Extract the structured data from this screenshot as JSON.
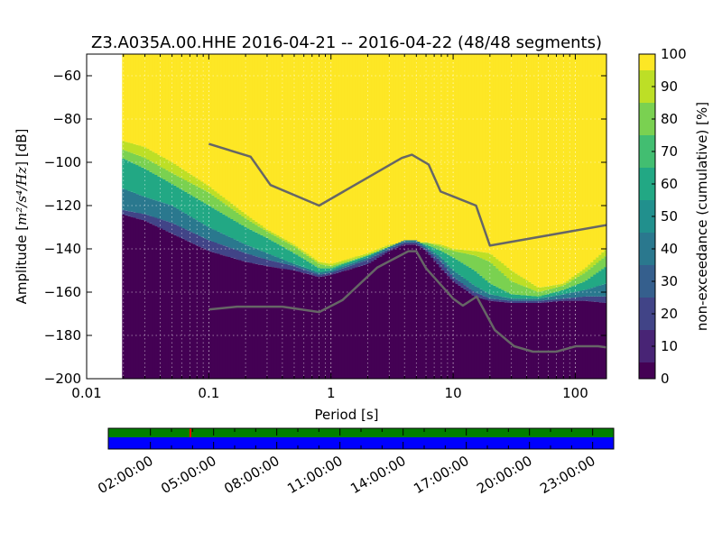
{
  "chart_data": {
    "type": "heatmap",
    "title": "Z3.A035A.00.HHE   2016-04-21 -- 2016-04-22  (48/48 segments)",
    "xlabel": "Period [s]",
    "ylabel_prefix": "Amplitude [",
    "ylabel_math": "m²/s⁴/Hz",
    "ylabel_suffix": "] [dB]",
    "x_scale": "log",
    "xlim": [
      0.01,
      180
    ],
    "ylim": [
      -200,
      -50
    ],
    "x_ticks": [
      {
        "value": 0.01,
        "label": "0.01"
      },
      {
        "value": 0.1,
        "label": "0.1"
      },
      {
        "value": 1,
        "label": "1"
      },
      {
        "value": 10,
        "label": "10"
      },
      {
        "value": 100,
        "label": "100"
      }
    ],
    "y_ticks": [
      {
        "value": -60,
        "label": "−60"
      },
      {
        "value": -80,
        "label": "−80"
      },
      {
        "value": -100,
        "label": "−100"
      },
      {
        "value": -120,
        "label": "−120"
      },
      {
        "value": -140,
        "label": "−140"
      },
      {
        "value": -160,
        "label": "−160"
      },
      {
        "value": -180,
        "label": "−180"
      },
      {
        "value": -200,
        "label": "−200"
      }
    ],
    "grid": true,
    "colorbar": {
      "label": "non-exceedance (cumulative) [%]",
      "range": [
        0,
        100
      ],
      "ticks": [
        {
          "value": 0,
          "label": "0"
        },
        {
          "value": 10,
          "label": "10"
        },
        {
          "value": 20,
          "label": "20"
        },
        {
          "value": 30,
          "label": "30"
        },
        {
          "value": 40,
          "label": "40"
        },
        {
          "value": 50,
          "label": "50"
        },
        {
          "value": 60,
          "label": "60"
        },
        {
          "value": 70,
          "label": "70"
        },
        {
          "value": 80,
          "label": "80"
        },
        {
          "value": 90,
          "label": "90"
        },
        {
          "value": 100,
          "label": "100"
        }
      ],
      "colors": [
        "#440154",
        "#482475",
        "#414487",
        "#355f8d",
        "#2a788e",
        "#21908d",
        "#22a884",
        "#42be71",
        "#7ad151",
        "#bddf26",
        "#fde725"
      ]
    },
    "data_start_period": 0.0195,
    "noise_models": {
      "color": "#666666",
      "high": {
        "x": [
          0.1,
          0.22,
          0.32,
          0.8,
          3.8,
          4.6,
          6.3,
          7.9,
          15.4,
          20,
          180
        ],
        "y": [
          -91.5,
          -97.4,
          -110.5,
          -120,
          -98,
          -96.5,
          -101,
          -113.5,
          -120,
          -138.5,
          -129
        ]
      },
      "low": {
        "x": [
          0.1,
          0.17,
          0.4,
          0.8,
          1.24,
          2.4,
          4.3,
          5,
          6,
          10,
          12,
          15.6,
          21.9,
          31.6,
          45,
          70,
          101,
          154,
          180
        ],
        "y": [
          -168,
          -166.7,
          -166.7,
          -169.2,
          -163.7,
          -148.6,
          -141.1,
          -141.1,
          -149,
          -163,
          -166.2,
          -162.1,
          -177.5,
          -185,
          -187.5,
          -187.5,
          -185,
          -185,
          -185.5
        ]
      }
    },
    "percentile_curves": {
      "x": [
        0.0195,
        0.03,
        0.05,
        0.1,
        0.2,
        0.3,
        0.5,
        0.8,
        1.0,
        2.0,
        3.0,
        4.0,
        5.0,
        6.0,
        8.0,
        10,
        15,
        20,
        30,
        50,
        80,
        120,
        180
      ],
      "p5": [
        -124,
        -127,
        -133,
        -141,
        -146,
        -148,
        -150,
        -153,
        -152,
        -147,
        -141,
        -138,
        -138,
        -141,
        -149,
        -155,
        -162,
        -164,
        -165,
        -165,
        -164,
        -164,
        -165
      ],
      "p20": [
        -122,
        -124,
        -128,
        -136,
        -142,
        -145,
        -148,
        -152,
        -151,
        -145,
        -140,
        -137,
        -137,
        -140,
        -146,
        -153,
        -160,
        -163,
        -164,
        -164,
        -163,
        -162,
        -162
      ],
      "p50": [
        -112,
        -116,
        -120,
        -130,
        -138,
        -142,
        -147,
        -151,
        -150,
        -144,
        -139,
        -136,
        -136,
        -139,
        -144,
        -150,
        -157,
        -161,
        -163,
        -163,
        -161,
        -159,
        -156
      ],
      "p70": [
        -98,
        -103,
        -110,
        -120,
        -130,
        -135,
        -142,
        -149,
        -149,
        -143,
        -139,
        -137,
        -137,
        -138,
        -141,
        -144,
        -150,
        -156,
        -161,
        -162,
        -159,
        -155,
        -148
      ],
      "p85": [
        -94,
        -98,
        -105,
        -114,
        -126,
        -132,
        -139,
        -147,
        -148,
        -143,
        -139,
        -137,
        -137,
        -137,
        -139,
        -141,
        -143,
        -146,
        -155,
        -160,
        -157,
        -151,
        -143
      ],
      "p95": [
        -90,
        -93,
        -100,
        -111,
        -124,
        -131,
        -138,
        -146,
        -147,
        -142,
        -138,
        -137,
        -137,
        -137,
        -138,
        -140,
        -141,
        -142,
        -150,
        -158,
        -156,
        -149,
        -140
      ]
    },
    "availability": {
      "tick_labels": [
        "02:00:00",
        "05:00:00",
        "08:00:00",
        "11:00:00",
        "14:00:00",
        "17:00:00",
        "20:00:00",
        "23:00:00"
      ],
      "data_color": "#008000",
      "gap_color": "#0000ff",
      "gap_marker_color": "#ff0000",
      "gap_marker_hour": 3.9
    }
  }
}
